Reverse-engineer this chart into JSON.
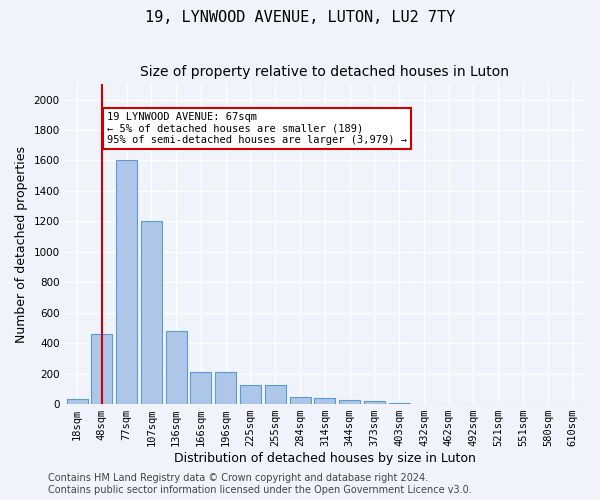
{
  "title": "19, LYNWOOD AVENUE, LUTON, LU2 7TY",
  "subtitle": "Size of property relative to detached houses in Luton",
  "xlabel": "Distribution of detached houses by size in Luton",
  "ylabel": "Number of detached properties",
  "categories": [
    "18sqm",
    "48sqm",
    "77sqm",
    "107sqm",
    "136sqm",
    "166sqm",
    "196sqm",
    "225sqm",
    "255sqm",
    "284sqm",
    "314sqm",
    "344sqm",
    "373sqm",
    "403sqm",
    "432sqm",
    "462sqm",
    "492sqm",
    "521sqm",
    "551sqm",
    "580sqm",
    "610sqm"
  ],
  "values": [
    35,
    460,
    1600,
    1200,
    480,
    210,
    210,
    125,
    125,
    47,
    40,
    25,
    20,
    10,
    0,
    0,
    0,
    0,
    0,
    0,
    0
  ],
  "bar_color": "#aec6e8",
  "bar_edge_color": "#5b9bd5",
  "vline_x": 1,
  "vline_color": "#cc0000",
  "annotation_text": "19 LYNWOOD AVENUE: 67sqm\n← 5% of detached houses are smaller (189)\n95% of semi-detached houses are larger (3,979) →",
  "annotation_box_color": "#ffffff",
  "annotation_box_edge": "#cc0000",
  "ylim": [
    0,
    2100
  ],
  "yticks": [
    0,
    200,
    400,
    600,
    800,
    1000,
    1200,
    1400,
    1600,
    1800,
    2000
  ],
  "footer_line1": "Contains HM Land Registry data © Crown copyright and database right 2024.",
  "footer_line2": "Contains public sector information licensed under the Open Government Licence v3.0.",
  "bg_color": "#f0f4fa",
  "grid_color": "#ffffff",
  "title_fontsize": 11,
  "subtitle_fontsize": 10,
  "axis_label_fontsize": 9,
  "tick_fontsize": 7.5,
  "footer_fontsize": 7
}
